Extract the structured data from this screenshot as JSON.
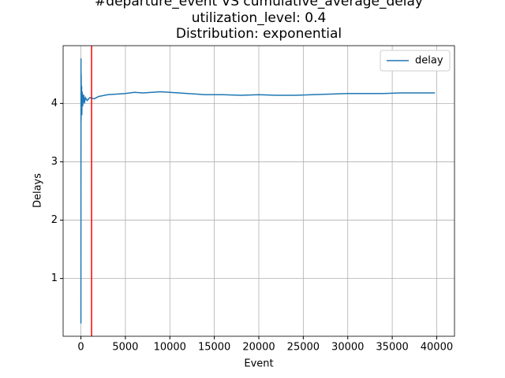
{
  "chart_data": {
    "type": "line",
    "title": [
      "#departure_event VS cumulative_average_delay",
      "utilization_level: 0.4",
      "Distribution: exponential"
    ],
    "xlabel": "Event",
    "ylabel": "Delays",
    "x": [
      0,
      10,
      20,
      30,
      50,
      80,
      100,
      150,
      200,
      300,
      400,
      500,
      700,
      1000,
      1500,
      2000,
      3000,
      4000,
      5000,
      6000,
      7000,
      8000,
      9000,
      10000,
      12000,
      14000,
      16000,
      18000,
      20000,
      22000,
      24000,
      26000,
      28000,
      30000,
      32000,
      34000,
      36000,
      38000,
      39800
    ],
    "series": [
      {
        "name": "delay",
        "color": "#1f77b4",
        "values": [
          0.23,
          4.77,
          3.7,
          4.5,
          3.9,
          4.3,
          3.8,
          4.2,
          3.95,
          4.15,
          4.0,
          4.1,
          4.05,
          4.1,
          4.08,
          4.12,
          4.15,
          4.16,
          4.17,
          4.19,
          4.18,
          4.19,
          4.2,
          4.19,
          4.17,
          4.15,
          4.15,
          4.14,
          4.15,
          4.14,
          4.14,
          4.15,
          4.16,
          4.17,
          4.17,
          4.17,
          4.18,
          4.18,
          4.18
        ]
      }
    ],
    "vline": {
      "value": 1200,
      "color": "#ff0000"
    },
    "xlim": [
      -2000,
      42000
    ],
    "xticks": [
      0,
      5000,
      10000,
      15000,
      20000,
      25000,
      30000,
      35000,
      40000
    ],
    "ylim": [
      0.01,
      4.99
    ],
    "yticks": [
      1,
      2,
      3,
      4
    ],
    "grid": true,
    "legend": "upper right"
  }
}
